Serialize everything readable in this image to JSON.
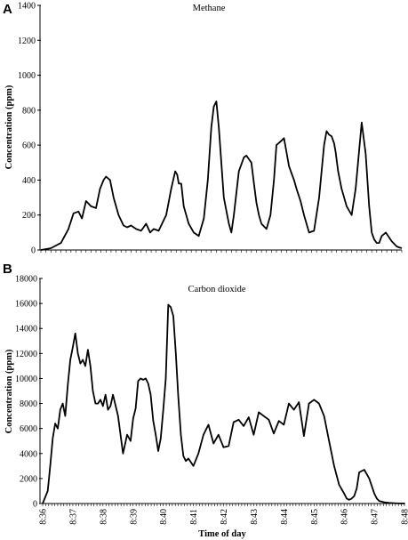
{
  "chart_data": [
    {
      "panel_label": "A",
      "type": "line",
      "title": "Methane",
      "xlabel": "",
      "ylabel": "Concentration (ppm)",
      "ylim": [
        0,
        1400
      ],
      "yticks": [
        0,
        200,
        400,
        600,
        800,
        1000,
        1200,
        1400
      ],
      "xlim": [
        0,
        720
      ],
      "grid": false,
      "series": [
        {
          "color": "#000000",
          "x": [
            0,
            20,
            40,
            55,
            65,
            75,
            82,
            90,
            100,
            110,
            118,
            125,
            130,
            138,
            145,
            155,
            165,
            172,
            180,
            190,
            200,
            210,
            218,
            225,
            235,
            240,
            250,
            260,
            268,
            272,
            275,
            280,
            285,
            295,
            305,
            315,
            325,
            333,
            340,
            345,
            350,
            355,
            365,
            375,
            380,
            385,
            395,
            405,
            410,
            415,
            420,
            425,
            430,
            435,
            440,
            450,
            458,
            465,
            470,
            478,
            485,
            490,
            495,
            500,
            505,
            510,
            518,
            525,
            535,
            545,
            555,
            565,
            570,
            575,
            580,
            585,
            588,
            593,
            600,
            610,
            620,
            628,
            640,
            648,
            655,
            660,
            665,
            670,
            675,
            680,
            688,
            700,
            710,
            715,
            720
          ],
          "y": [
            0,
            10,
            40,
            120,
            210,
            220,
            180,
            280,
            250,
            240,
            350,
            400,
            420,
            400,
            300,
            200,
            140,
            130,
            140,
            120,
            110,
            150,
            100,
            120,
            110,
            140,
            200,
            350,
            450,
            430,
            380,
            380,
            250,
            150,
            100,
            80,
            180,
            400,
            700,
            820,
            850,
            700,
            300,
            150,
            100,
            200,
            450,
            530,
            540,
            520,
            500,
            380,
            270,
            200,
            150,
            120,
            200,
            400,
            600,
            620,
            640,
            560,
            480,
            440,
            400,
            350,
            280,
            200,
            100,
            110,
            300,
            600,
            680,
            660,
            650,
            610,
            560,
            450,
            350,
            250,
            200,
            350,
            730,
            550,
            250,
            100,
            60,
            40,
            40,
            80,
            100,
            50,
            20,
            15,
            10
          ]
        }
      ]
    },
    {
      "panel_label": "B",
      "type": "line",
      "title": "Carbon dioxide",
      "xlabel": "Time of day",
      "ylabel": "Concentration (ppm)",
      "ylim": [
        0,
        18000
      ],
      "yticks": [
        0,
        2000,
        4000,
        6000,
        8000,
        10000,
        12000,
        14000,
        16000,
        18000
      ],
      "xlim": [
        0,
        720
      ],
      "xticks": [
        0,
        60,
        120,
        180,
        240,
        300,
        360,
        420,
        480,
        540,
        600,
        660,
        720
      ],
      "xticklabels": [
        "8:36",
        "8:37",
        "8:38",
        "8:39",
        "8:40",
        "8:41",
        "8:42",
        "8:43",
        "8:44",
        "8:45",
        "8:46",
        "8:47",
        "8:48"
      ],
      "grid": false,
      "series": [
        {
          "color": "#000000",
          "x": [
            0,
            5,
            10,
            15,
            20,
            25,
            30,
            35,
            40,
            45,
            50,
            55,
            60,
            65,
            70,
            75,
            80,
            85,
            90,
            95,
            100,
            105,
            110,
            115,
            120,
            125,
            130,
            135,
            140,
            150,
            160,
            168,
            175,
            180,
            185,
            190,
            195,
            200,
            205,
            210,
            215,
            220,
            225,
            230,
            235,
            240,
            245,
            250,
            255,
            260,
            265,
            270,
            275,
            280,
            285,
            290,
            295,
            300,
            305,
            310,
            320,
            330,
            340,
            350,
            360,
            370,
            380,
            390,
            400,
            410,
            420,
            430,
            440,
            450,
            460,
            470,
            480,
            490,
            500,
            510,
            520,
            530,
            540,
            550,
            560,
            570,
            580,
            590,
            600,
            605,
            610,
            615,
            620,
            625,
            630,
            640,
            650,
            660,
            665,
            670,
            675,
            680,
            690,
            700,
            710,
            720
          ],
          "y": [
            0,
            500,
            1000,
            3000,
            5200,
            6400,
            6000,
            7500,
            8000,
            7000,
            9500,
            11500,
            12500,
            13600,
            12000,
            11200,
            11500,
            11000,
            12300,
            11000,
            9000,
            8000,
            8000,
            8300,
            7800,
            8700,
            7500,
            7800,
            8700,
            7000,
            4000,
            5500,
            5000,
            6800,
            7600,
            9800,
            10000,
            9900,
            10000,
            9600,
            8700,
            6600,
            5500,
            4200,
            5200,
            7500,
            10000,
            15900,
            15700,
            15000,
            12000,
            8500,
            5500,
            3800,
            3400,
            3600,
            3300,
            3000,
            3500,
            4000,
            5500,
            6300,
            4800,
            5500,
            4500,
            4600,
            6500,
            6700,
            6200,
            6900,
            5500,
            7300,
            7000,
            6700,
            5600,
            6600,
            6300,
            8000,
            7500,
            8100,
            5400,
            8000,
            8300,
            8000,
            7000,
            5000,
            3000,
            1500,
            800,
            400,
            300,
            400,
            600,
            1200,
            2500,
            2700,
            2000,
            800,
            400,
            200,
            150,
            100,
            50,
            30,
            10,
            5
          ]
        }
      ]
    }
  ]
}
